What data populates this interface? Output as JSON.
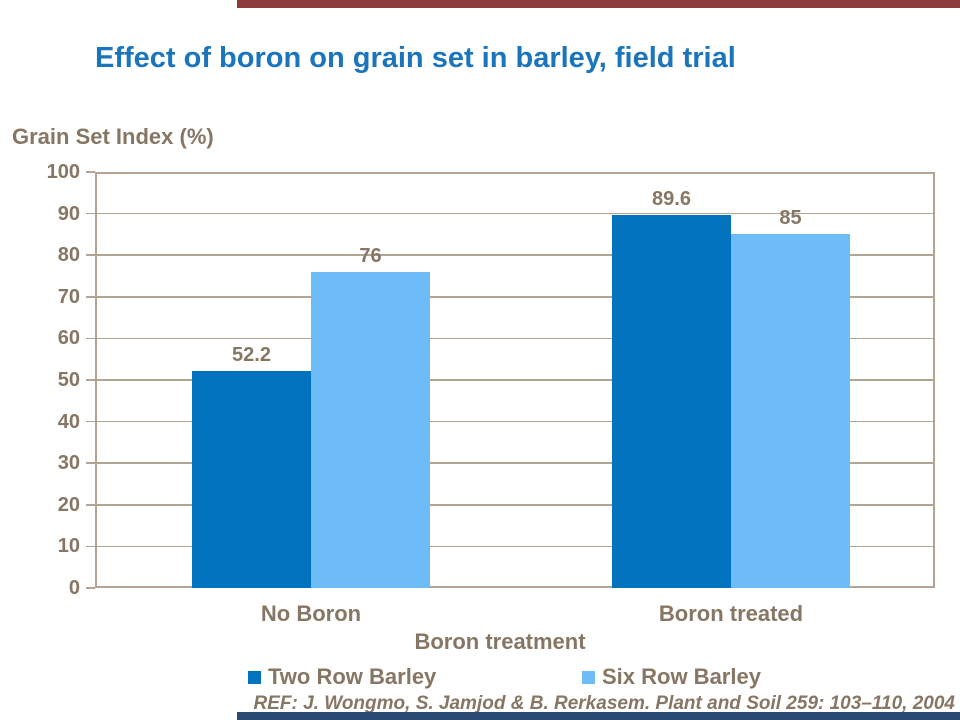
{
  "slide": {
    "ref_citation": "REF: J. Wongmo, S. Jamjod & B. Rerkasem. Plant and Soil 259: 103–110, 2004",
    "colors": {
      "title_blue": "#1B75BC",
      "text_brown": "#877663",
      "axis_tan": "#B2A493",
      "accent_top": "#8C3C3A",
      "accent_bottom": "#2A4A74"
    }
  },
  "chart_data": {
    "type": "bar",
    "title": "Effect of boron on grain set in barley, field trial",
    "ylabel": "Grain Set Index (%)",
    "xlabel": "Boron treatment",
    "categories": [
      "No Boron",
      "Boron treated"
    ],
    "series": [
      {
        "name": "Two Row Barley",
        "color": "#0072BE",
        "values": [
          52.2,
          89.6
        ]
      },
      {
        "name": "Six Row Barley",
        "color": "#6DBCF8",
        "values": [
          76,
          85
        ]
      }
    ],
    "data_labels": [
      "52.2",
      "76",
      "89.6",
      "85"
    ],
    "ylim": [
      0,
      100
    ],
    "ytick_step": 10,
    "grid": true,
    "legend_position": "bottom"
  }
}
